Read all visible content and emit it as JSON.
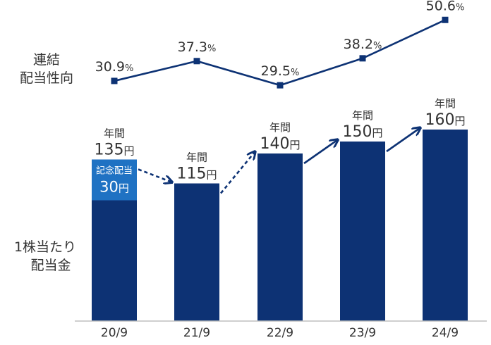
{
  "chart_data": {
    "type": "bar",
    "categories": [
      "20/9",
      "21/9",
      "22/9",
      "23/9",
      "24/9"
    ],
    "series": [
      {
        "name": "1株当たり配当金",
        "values": [
          135,
          115,
          140,
          150,
          160
        ],
        "unit": "円",
        "label_prefix": "年間",
        "color": "#0d3274"
      },
      {
        "name": "連結配当性向",
        "type": "line",
        "values": [
          30.9,
          37.3,
          29.5,
          38.2,
          50.6
        ],
        "unit": "%",
        "color": "#0d3274"
      }
    ],
    "commemorative": {
      "category": "20/9",
      "label": "記念配当",
      "value": 30,
      "unit": "円",
      "color": "#1f72c3"
    },
    "axis_title_line": [
      "連結",
      "配当性向"
    ],
    "axis_title_bar": [
      "1株当たり",
      "配当金"
    ],
    "legend": "left",
    "grid": false
  }
}
